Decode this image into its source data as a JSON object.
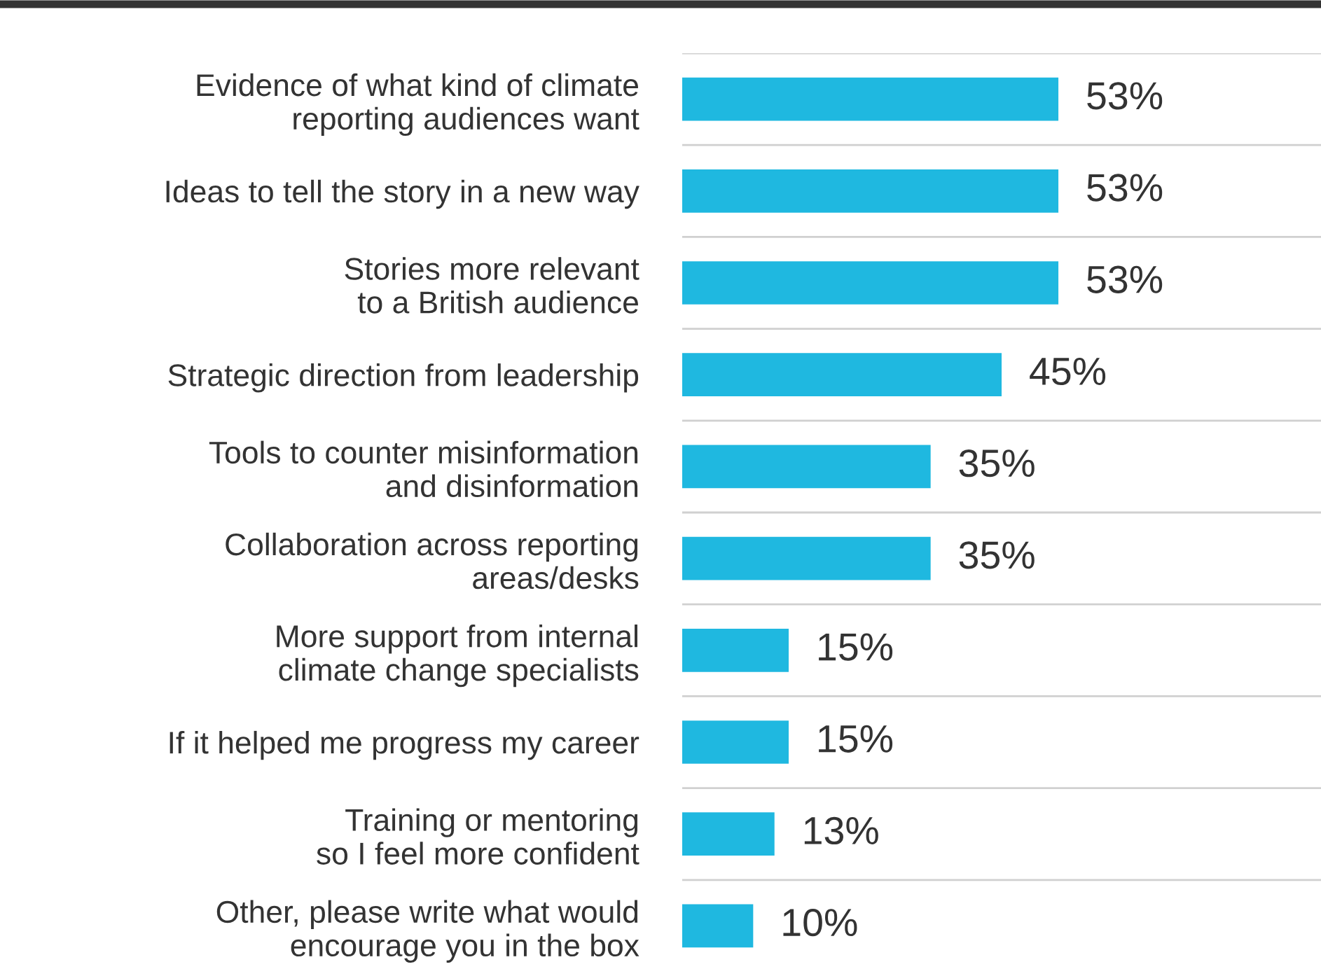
{
  "chart_data": {
    "type": "bar",
    "orientation": "horizontal",
    "categories": [
      "Evidence of what kind of climate\nreporting audiences want",
      "Ideas to tell the story in a new way",
      "Stories more relevant\nto a British audience",
      "Strategic direction from leadership",
      "Tools to counter misinformation\nand disinformation",
      "Collaboration across reporting\nareas/desks",
      "More support from internal\nclimate change specialists",
      "If it helped me progress my career",
      "Training or mentoring\nso I feel more confident",
      "Other, please write what would\nencourage you in the box"
    ],
    "values": [
      53,
      53,
      53,
      45,
      35,
      35,
      15,
      15,
      13,
      10
    ],
    "value_labels": [
      "53%",
      "53%",
      "53%",
      "45%",
      "35%",
      "35%",
      "15%",
      "15%",
      "13%",
      "10%"
    ],
    "color": "#1fb8e0",
    "xlim": [
      0,
      90
    ],
    "grid": "y",
    "tick_labels": "y"
  }
}
